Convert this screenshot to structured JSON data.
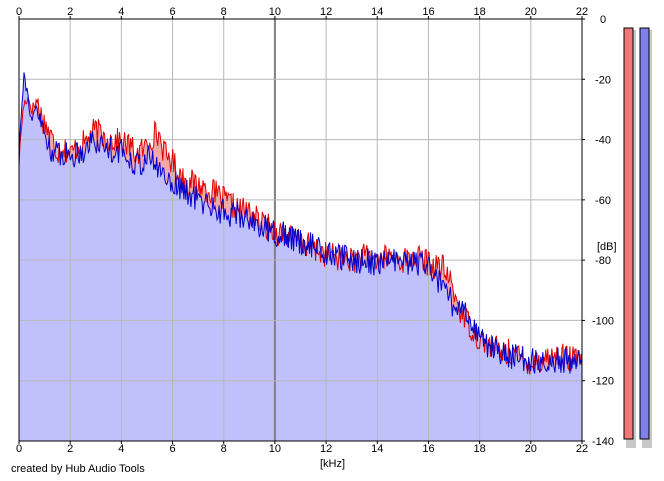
{
  "credit": "created by Hub Audio Tools",
  "colors": {
    "background": "#ffffff",
    "grid": "#b8b8b8",
    "grid_major": "#808080",
    "left_line": "#e00000",
    "left_fill": "#f4a8a8",
    "right_line": "#0000cc",
    "right_fill": "#c0c0fc",
    "meter_left": "#f07878",
    "meter_right": "#8080ec"
  },
  "chart_data": {
    "type": "area",
    "title": "",
    "xlabel": "[kHz]",
    "ylabel": "[dB]",
    "xlim": [
      0,
      22
    ],
    "ylim": [
      -140,
      0
    ],
    "x_ticks": [
      "0",
      "2",
      "4",
      "6",
      "8",
      "10",
      "12",
      "14",
      "16",
      "18",
      "20",
      "22"
    ],
    "y_ticks": [
      "0",
      "-20",
      "-40",
      "-60",
      "-80",
      "-100",
      "-120",
      "-140"
    ],
    "grid": true,
    "legend": "none",
    "series": [
      {
        "color": "#e00000",
        "fill": "#f4a8a8",
        "x": [
          0,
          0.1,
          0.2,
          0.35,
          0.5,
          0.7,
          0.9,
          1.1,
          1.3,
          1.5,
          1.7,
          2.0,
          2.3,
          2.6,
          2.8,
          3.0,
          3.3,
          3.6,
          4.0,
          4.3,
          4.6,
          4.9,
          5.1,
          5.3,
          5.5,
          5.7,
          6.0,
          6.3,
          6.6,
          7.0,
          7.5,
          8.0,
          8.5,
          9.0,
          9.5,
          10.0,
          10.5,
          11.0,
          11.5,
          12.0,
          12.5,
          13.0,
          13.5,
          14.0,
          14.5,
          15.0,
          15.5,
          16.0,
          16.3,
          16.6,
          16.9,
          17.2,
          17.5,
          17.8,
          18.0,
          18.3,
          18.6,
          19.0,
          19.3,
          19.6,
          20.0,
          20.4,
          20.8,
          21.2,
          21.6,
          22.0
        ],
        "y": [
          -48,
          -35,
          -28,
          -26,
          -30,
          -27,
          -33,
          -36,
          -40,
          -44,
          -42,
          -45,
          -42,
          -41,
          -38,
          -37,
          -39,
          -40,
          -41,
          -42,
          -45,
          -43,
          -40,
          -38,
          -39,
          -45,
          -47,
          -52,
          -54,
          -55,
          -57,
          -60,
          -63,
          -64,
          -68,
          -70,
          -72,
          -74,
          -76,
          -78,
          -79,
          -80,
          -79,
          -80,
          -79,
          -80,
          -79,
          -81,
          -82,
          -83,
          -88,
          -96,
          -100,
          -104,
          -106,
          -108,
          -109,
          -111,
          -110,
          -113,
          -114,
          -113,
          -112,
          -112,
          -113,
          -113
        ]
      },
      {
        "color": "#0000cc",
        "fill": "#c0c0fc",
        "x": [
          0,
          0.1,
          0.2,
          0.35,
          0.5,
          0.7,
          0.9,
          1.1,
          1.3,
          1.5,
          1.7,
          2.0,
          2.3,
          2.6,
          2.8,
          3.0,
          3.3,
          3.6,
          4.0,
          4.3,
          4.6,
          4.9,
          5.1,
          5.3,
          5.5,
          5.7,
          6.0,
          6.3,
          6.6,
          7.0,
          7.5,
          8.0,
          8.5,
          9.0,
          9.5,
          10.0,
          10.5,
          11.0,
          11.5,
          12.0,
          12.5,
          13.0,
          13.5,
          14.0,
          14.5,
          15.0,
          15.5,
          16.0,
          16.3,
          16.6,
          16.9,
          17.2,
          17.5,
          17.8,
          18.0,
          18.3,
          18.6,
          19.0,
          19.3,
          19.6,
          20.0,
          20.4,
          20.8,
          21.2,
          21.6,
          22.0
        ],
        "y": [
          -45,
          -28,
          -18,
          -26,
          -34,
          -30,
          -36,
          -40,
          -44,
          -45,
          -44,
          -46,
          -44,
          -43,
          -40,
          -41,
          -42,
          -43,
          -44,
          -46,
          -48,
          -47,
          -46,
          -48,
          -50,
          -52,
          -54,
          -56,
          -58,
          -60,
          -62,
          -64,
          -65,
          -66,
          -69,
          -71,
          -72,
          -74,
          -75,
          -78,
          -79,
          -80,
          -80,
          -81,
          -80,
          -81,
          -81,
          -82,
          -86,
          -90,
          -94,
          -97,
          -98,
          -101,
          -106,
          -108,
          -110,
          -111,
          -112,
          -113,
          -113,
          -114,
          -113,
          -113,
          -114,
          -114
        ]
      }
    ]
  }
}
